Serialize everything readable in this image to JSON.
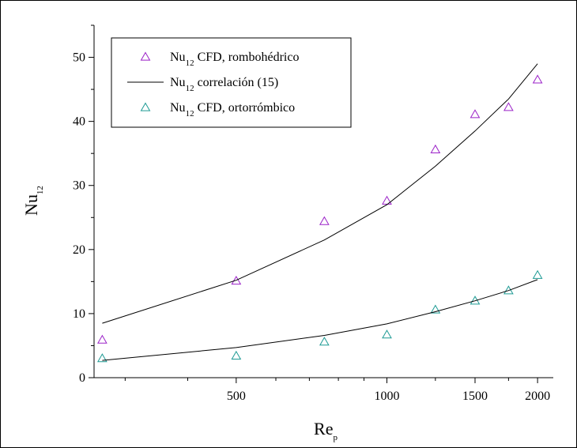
{
  "chart_data": {
    "type": "scatter",
    "xlabel": "Re",
    "xlabel_sub": "p",
    "ylabel": "Nu",
    "ylabel_sub": "12",
    "x_scale": "log",
    "xlim": [
      260,
      2150
    ],
    "ylim": [
      0,
      55
    ],
    "x_ticks": [
      500,
      1000,
      1500,
      2000
    ],
    "y_ticks": [
      0,
      10,
      20,
      30,
      40,
      50
    ],
    "grid": false,
    "legend_position": "top-left",
    "series": [
      {
        "name": "Nu",
        "name_sub": "12",
        "name_rest": " CFD, rombohédrico",
        "kind": "marker",
        "marker": "triangle",
        "color": "#9b22c8",
        "x": [
          270,
          500,
          750,
          1000,
          1250,
          1500,
          1750,
          2000
        ],
        "y": [
          5.9,
          15.1,
          24.4,
          27.6,
          35.6,
          41.1,
          42.2,
          46.5
        ]
      },
      {
        "name": "Nu",
        "name_sub": "12",
        "name_rest": " correlación (15)",
        "kind": "line",
        "color": "#000000",
        "x": [
          270,
          500,
          750,
          1000,
          1250,
          1500,
          1750,
          2000
        ],
        "y": [
          8.5,
          15.2,
          21.5,
          27.0,
          33.0,
          38.5,
          43.5,
          49.0
        ]
      },
      {
        "name": "Nu",
        "name_sub": "12",
        "name_rest": " CFD, ortorrómbico",
        "kind": "marker",
        "marker": "triangle",
        "color": "#1d9a94",
        "x": [
          270,
          500,
          750,
          1000,
          1250,
          1500,
          1750,
          2000
        ],
        "y": [
          3.0,
          3.4,
          5.6,
          6.7,
          10.6,
          12.0,
          13.6,
          16.0
        ]
      },
      {
        "name": "",
        "kind": "line",
        "color": "#000000",
        "x": [
          270,
          500,
          750,
          1000,
          1250,
          1500,
          1750,
          2000
        ],
        "y": [
          2.7,
          4.7,
          6.6,
          8.4,
          10.3,
          12.0,
          13.6,
          15.3
        ]
      }
    ]
  }
}
